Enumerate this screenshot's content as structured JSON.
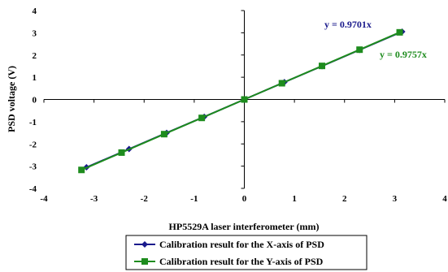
{
  "chart_data": {
    "type": "line",
    "title": "",
    "xlabel": "HP5529A laser interferometer (mm)",
    "ylabel": "PSD voltage (V)",
    "xlim": [
      -4,
      4
    ],
    "ylim": [
      -4,
      4
    ],
    "xticks": [
      -4,
      -3,
      -2,
      -1,
      0,
      1,
      2,
      3,
      4
    ],
    "yticks": [
      -4,
      -3,
      -2,
      -1,
      0,
      1,
      2,
      3,
      4
    ],
    "grid": false,
    "legend_position": "bottom-center",
    "series": [
      {
        "name": "Calibration result for the X-axis of PSD",
        "color": "#1a1a8c",
        "marker": "diamond",
        "x": [
          -3.15,
          -2.3,
          -1.55,
          -0.8,
          0,
          0.8,
          1.55,
          2.3,
          3.15
        ],
        "y": [
          -3.05,
          -2.23,
          -1.5,
          -0.78,
          0,
          0.78,
          1.5,
          2.23,
          3.05
        ]
      },
      {
        "name": "Calibration result for the Y-axis of PSD",
        "color": "#1e8c1e",
        "marker": "square",
        "x": [
          -3.25,
          -2.45,
          -1.6,
          -0.85,
          0,
          0.75,
          1.55,
          2.3,
          3.1
        ],
        "y": [
          -3.17,
          -2.39,
          -1.56,
          -0.83,
          0,
          0.73,
          1.51,
          2.24,
          3.02
        ]
      }
    ],
    "annotations": [
      {
        "text": "y = 0.9701x",
        "color": "#1a1a8c"
      },
      {
        "text": "y = 0.9757x",
        "color": "#1e8c1e"
      }
    ]
  }
}
